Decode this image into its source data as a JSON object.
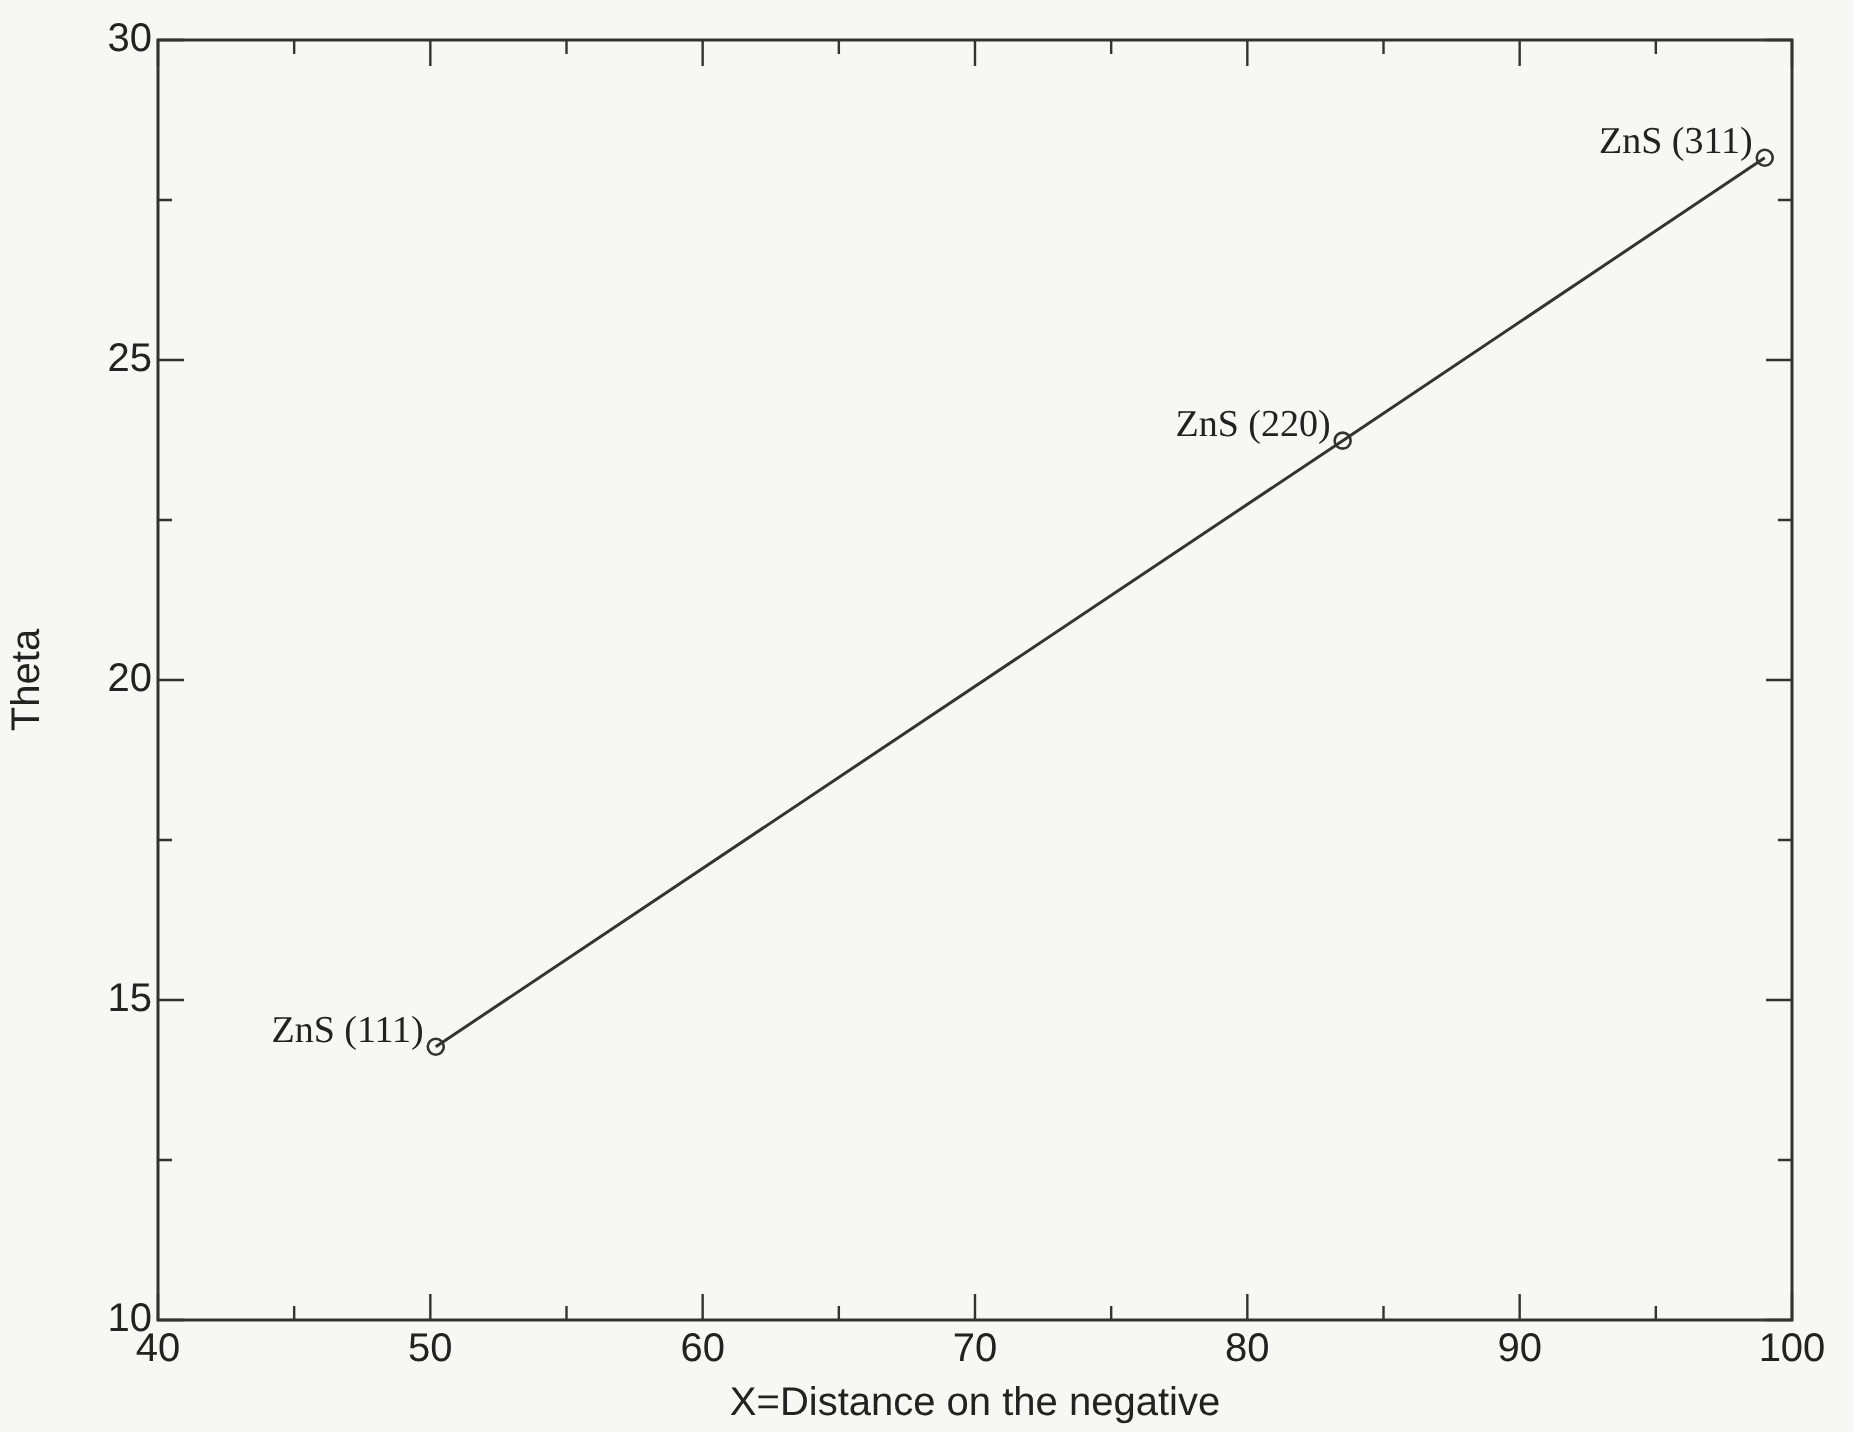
{
  "chart_data": {
    "type": "line",
    "xlabel": "X=Distance on the negative",
    "ylabel": "Theta",
    "x": [
      50.2,
      83.5,
      99.0
    ],
    "series": [
      {
        "color": "#333333",
        "values": [
          14.27,
          23.74,
          28.16
        ]
      }
    ],
    "marker": "circle",
    "line_style": "solid",
    "xlim": [
      40,
      100
    ],
    "xticks": [
      40,
      {
        "value": 45,
        "label": null
      },
      50,
      {
        "value": 55,
        "label": null
      },
      60,
      {
        "value": 65,
        "label": null
      },
      70,
      {
        "value": 75,
        "label": null
      },
      80,
      {
        "value": 85,
        "label": null
      },
      90,
      {
        "value": 95,
        "label": null
      },
      100
    ],
    "ylim": [
      10,
      30
    ],
    "yticks": [
      10,
      {
        "value": 12.5,
        "label": null
      },
      15,
      {
        "value": 17.5,
        "label": null
      },
      20,
      {
        "value": 22.5,
        "label": null
      },
      25,
      {
        "value": 27.5,
        "label": null
      },
      30
    ],
    "annotations": [
      {
        "text": "ZnS (111)",
        "x": 50.2,
        "y": 14.27
      },
      {
        "text": "ZnS (220)",
        "x": 83.5,
        "y": 23.74
      },
      {
        "text": "ZnS (311)",
        "x": 99.0,
        "y": 28.16
      }
    ]
  }
}
